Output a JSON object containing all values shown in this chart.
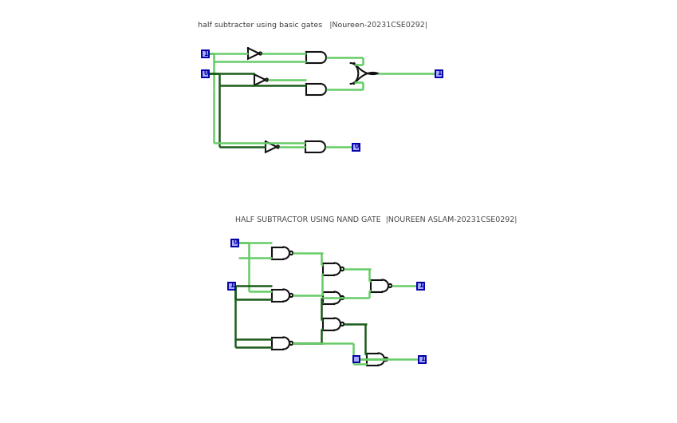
{
  "bg_color": "#ffffff",
  "title1": "half subtracter using basic gates   |Noureen-20231CSE0292|",
  "title2": "HALF SUBTRACTOR USING NAND GATE  |NOUREEN ASLAM-20231CSE0292|",
  "wire_dark": "#1a5c1a",
  "wire_light": "#66cc66",
  "gate_color": "#111111",
  "box_edge": "#0000aa",
  "box_face": "#aaaaff",
  "box_text": "#000099"
}
